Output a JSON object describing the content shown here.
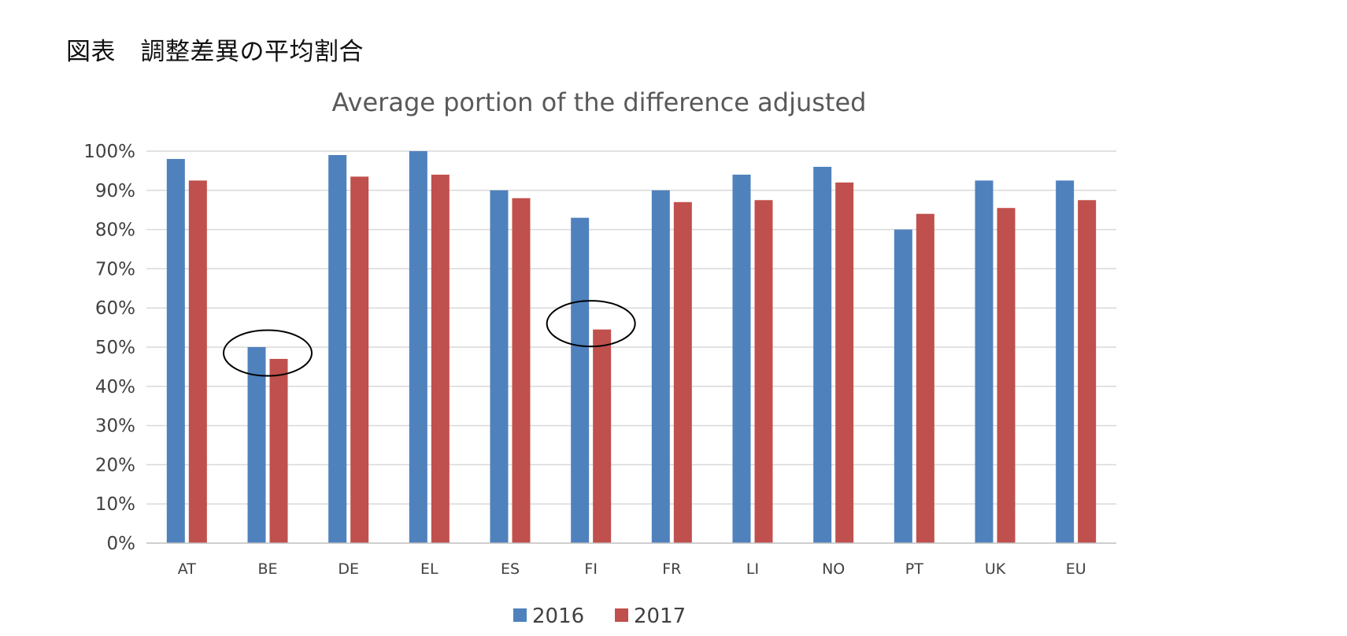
{
  "caption": "図表　調整差異の平均割合",
  "chart_data": {
    "type": "bar",
    "title": "Average portion of the difference adjusted",
    "xlabel": "",
    "ylabel": "",
    "ylim": [
      0,
      100
    ],
    "y_unit": "%",
    "yticks": [
      "0%",
      "10%",
      "20%",
      "30%",
      "40%",
      "50%",
      "60%",
      "70%",
      "80%",
      "90%",
      "100%"
    ],
    "grid": true,
    "legend_position": "bottom",
    "categories": [
      "AT",
      "BE",
      "DE",
      "EL",
      "ES",
      "FI",
      "FR",
      "LI",
      "NO",
      "PT",
      "UK",
      "EU"
    ],
    "series": [
      {
        "name": "2016",
        "color": "#4f81bd",
        "values": [
          98,
          50,
          99,
          100,
          90,
          83,
          90,
          94,
          96,
          80,
          92.5,
          92.5
        ]
      },
      {
        "name": "2017",
        "color": "#c0504d",
        "values": [
          92.5,
          47,
          93.5,
          94,
          88,
          54.5,
          87,
          87.5,
          92,
          84,
          85.5,
          87.5
        ]
      }
    ],
    "annotations": [
      {
        "type": "ellipse",
        "category": "BE",
        "value": 48.5
      },
      {
        "type": "ellipse",
        "category": "FI",
        "value": 56
      }
    ]
  }
}
